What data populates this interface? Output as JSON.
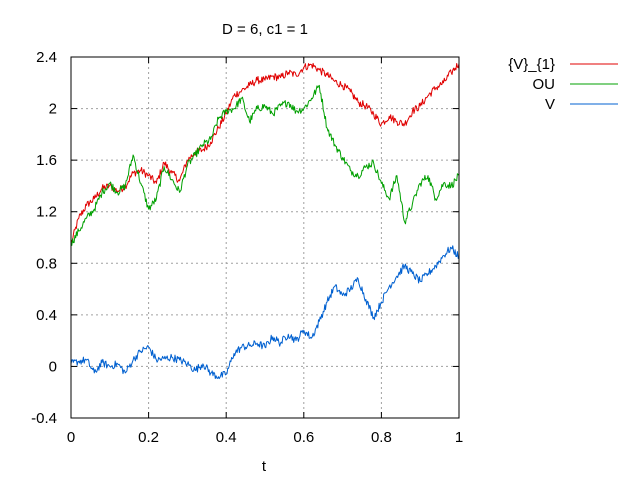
{
  "chart_data": {
    "type": "line",
    "title": "D = 6, c1 = 1",
    "xlabel": "t",
    "ylabel": "",
    "xlim": [
      0,
      1
    ],
    "ylim": [
      -0.4,
      2.4
    ],
    "xticks": [
      "0",
      "0.2",
      "0.4",
      "0.6",
      "0.8",
      "1"
    ],
    "yticks": [
      "-0.4",
      "0",
      "0.4",
      "0.8",
      "1.2",
      "1.6",
      "2",
      "2.4"
    ],
    "grid": true,
    "legend_position": "top-right outside",
    "x": [
      0,
      0.02,
      0.04,
      0.06,
      0.08,
      0.1,
      0.12,
      0.14,
      0.16,
      0.18,
      0.2,
      0.22,
      0.24,
      0.26,
      0.28,
      0.3,
      0.32,
      0.34,
      0.36,
      0.38,
      0.4,
      0.42,
      0.44,
      0.46,
      0.48,
      0.5,
      0.52,
      0.54,
      0.56,
      0.58,
      0.6,
      0.62,
      0.64,
      0.66,
      0.68,
      0.7,
      0.72,
      0.74,
      0.76,
      0.78,
      0.8,
      0.82,
      0.84,
      0.86,
      0.88,
      0.9,
      0.92,
      0.94,
      0.96,
      0.98,
      1.0
    ],
    "series": [
      {
        "name": "{V}_{1}",
        "color": "#e00000",
        "values": [
          0.95,
          1.15,
          1.25,
          1.3,
          1.38,
          1.4,
          1.36,
          1.4,
          1.5,
          1.52,
          1.48,
          1.42,
          1.58,
          1.5,
          1.44,
          1.6,
          1.66,
          1.68,
          1.74,
          1.85,
          1.96,
          2.1,
          2.14,
          2.18,
          2.22,
          2.22,
          2.25,
          2.24,
          2.28,
          2.26,
          2.32,
          2.34,
          2.3,
          2.26,
          2.21,
          2.18,
          2.13,
          2.05,
          2.02,
          1.96,
          1.88,
          1.94,
          1.9,
          1.88,
          1.98,
          2.02,
          2.1,
          2.16,
          2.2,
          2.28,
          2.35
        ]
      },
      {
        "name": "OU",
        "color": "#00a000",
        "values": [
          0.95,
          1.05,
          1.15,
          1.22,
          1.35,
          1.42,
          1.35,
          1.4,
          1.64,
          1.42,
          1.22,
          1.3,
          1.55,
          1.45,
          1.35,
          1.56,
          1.64,
          1.72,
          1.76,
          1.92,
          1.98,
          2.0,
          2.08,
          1.9,
          2.0,
          2.02,
          1.96,
          2.02,
          2.05,
          1.98,
          2.0,
          2.08,
          2.18,
          1.85,
          1.72,
          1.62,
          1.52,
          1.48,
          1.55,
          1.58,
          1.42,
          1.3,
          1.48,
          1.12,
          1.26,
          1.42,
          1.48,
          1.3,
          1.42,
          1.4,
          1.48
        ]
      },
      {
        "name": "V",
        "color": "#0060d0",
        "values": [
          0.02,
          0.04,
          0.05,
          -0.05,
          0.03,
          0.0,
          0.02,
          -0.05,
          0.05,
          0.12,
          0.15,
          0.05,
          0.06,
          0.07,
          0.05,
          0.02,
          -0.03,
          0.02,
          -0.05,
          -0.08,
          -0.06,
          0.1,
          0.15,
          0.16,
          0.18,
          0.15,
          0.23,
          0.18,
          0.25,
          0.2,
          0.28,
          0.22,
          0.35,
          0.5,
          0.62,
          0.55,
          0.6,
          0.68,
          0.52,
          0.38,
          0.5,
          0.62,
          0.7,
          0.78,
          0.72,
          0.66,
          0.72,
          0.78,
          0.86,
          0.92,
          0.85
        ]
      }
    ]
  }
}
